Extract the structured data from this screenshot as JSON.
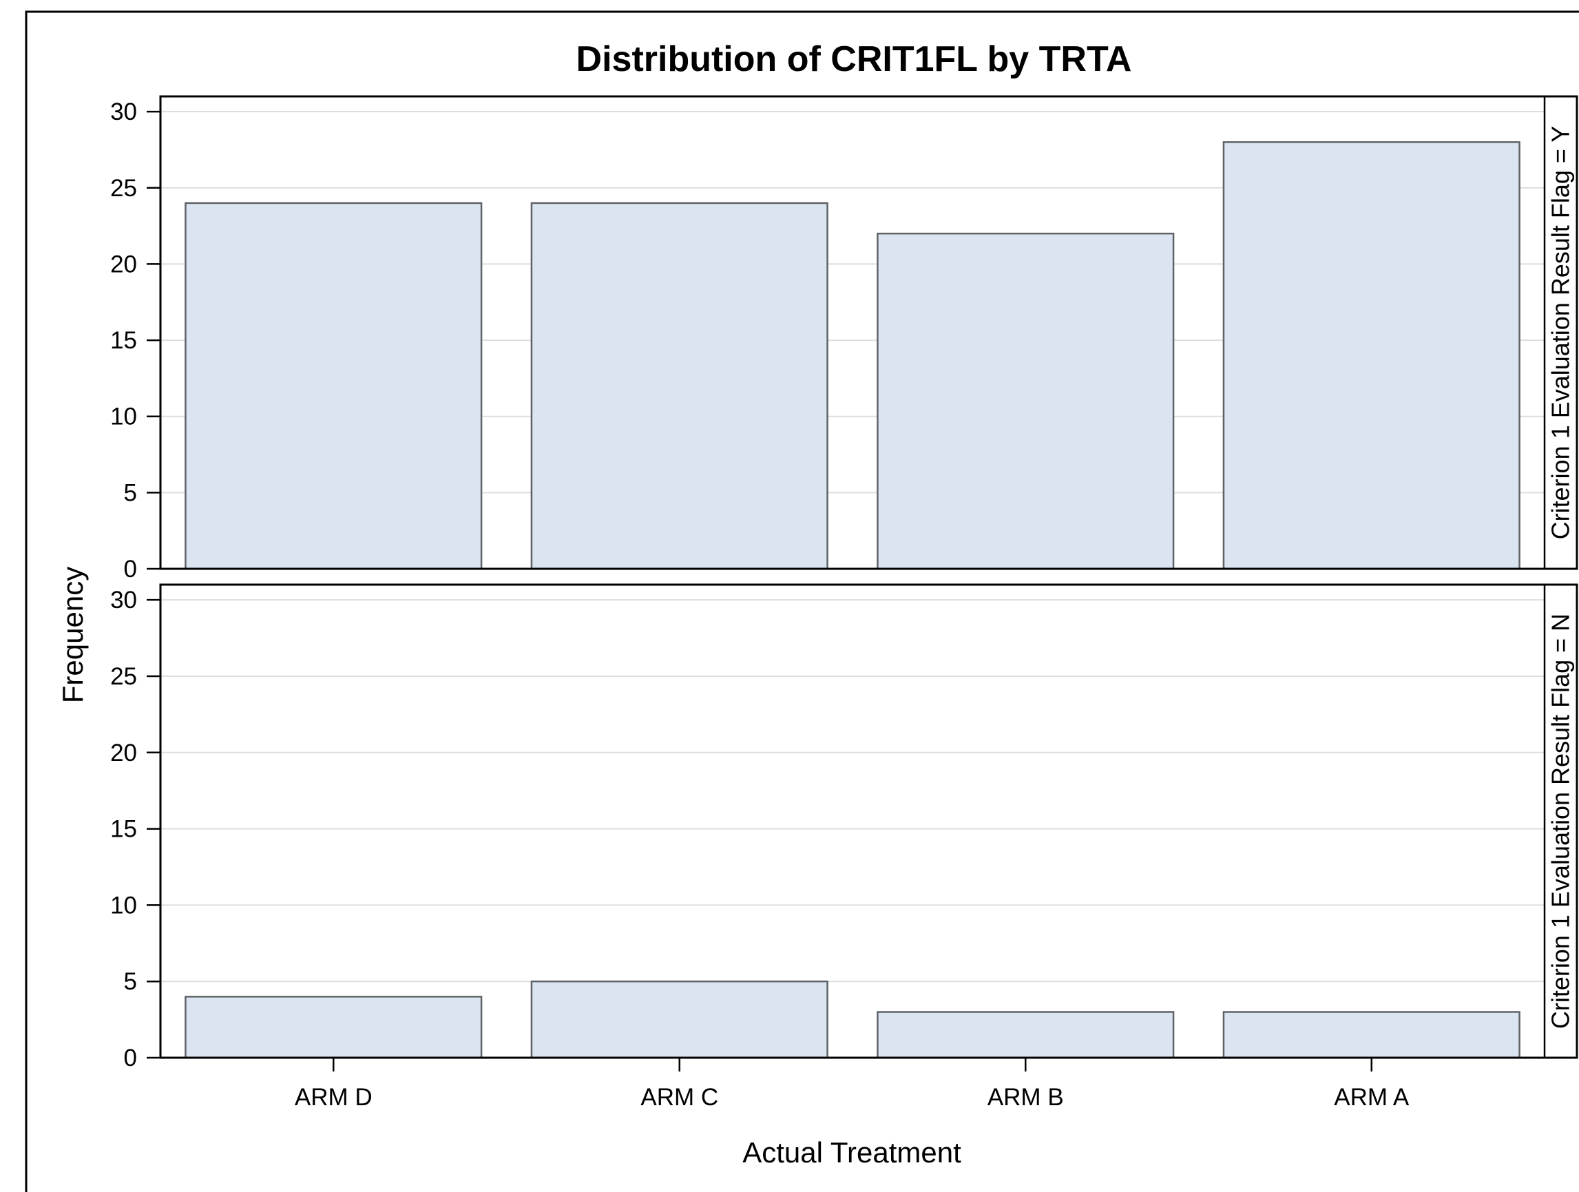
{
  "chart_data": {
    "type": "bar",
    "title": "Distribution of CRIT1FL by TRTA",
    "xlabel": "Actual Treatment",
    "ylabel": "Frequency",
    "categories": [
      "ARM D",
      "ARM C",
      "ARM B",
      "ARM A"
    ],
    "ylim": [
      0,
      31
    ],
    "yticks": [
      0,
      5,
      10,
      15,
      20,
      25,
      30
    ],
    "grid": true,
    "panels": [
      {
        "strip_label": "Criterion 1 Evaluation Result Flag = Y",
        "values": [
          24,
          24,
          22,
          28
        ]
      },
      {
        "strip_label": "Criterion 1 Evaluation Result Flag = N",
        "values": [
          4,
          5,
          3,
          3
        ]
      }
    ],
    "colors": {
      "bar_fill": "#dbe5f1",
      "bar_outline": "#5f6368",
      "gridline": "#dddddd",
      "frame": "#000000"
    }
  }
}
